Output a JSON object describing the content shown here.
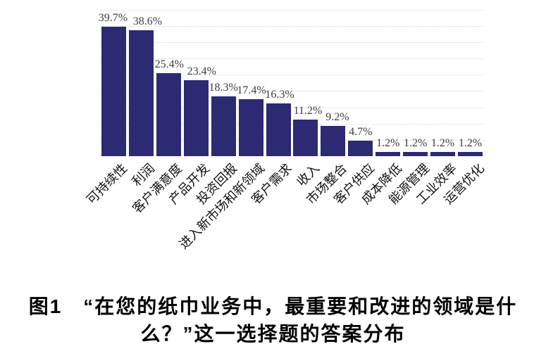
{
  "figure_caption": {
    "line1": "图1　“在您的纸巾业务中，最重要和改进的领域是什",
    "line2": "么？”这一选择题的答案分布"
  },
  "chart_data": {
    "type": "bar",
    "title": "",
    "xlabel": "",
    "ylabel": "",
    "categories": [
      "可持续性",
      "利润",
      "客户满意度",
      "产品开发",
      "投资回报",
      "进入新市场和新领域",
      "客户需求",
      "收入",
      "市场整合",
      "客户供应",
      "成本降低",
      "能源管理",
      "工业效率",
      "运营优化"
    ],
    "values": [
      39.7,
      38.6,
      25.4,
      23.4,
      18.3,
      17.4,
      16.3,
      11.2,
      9.2,
      4.7,
      1.2,
      1.2,
      1.2,
      1.2
    ],
    "value_labels": [
      "39.7%",
      "38.6%",
      "25.4%",
      "23.4%",
      "18.3%",
      "17.4%",
      "16.3%",
      "11.2%",
      "9.2%",
      "4.7%",
      "1.2%",
      "1.2%",
      "1.2%",
      "1.2%"
    ],
    "ylim": [
      0,
      45
    ],
    "grid": {
      "visible": true,
      "interval": 5,
      "style": "dotted",
      "color": "#d9d9d9"
    },
    "legend_position": "none",
    "bar_color": "#2c2a72",
    "value_label_color": "#3d3d3d",
    "x_label_rotation_deg": 45
  }
}
